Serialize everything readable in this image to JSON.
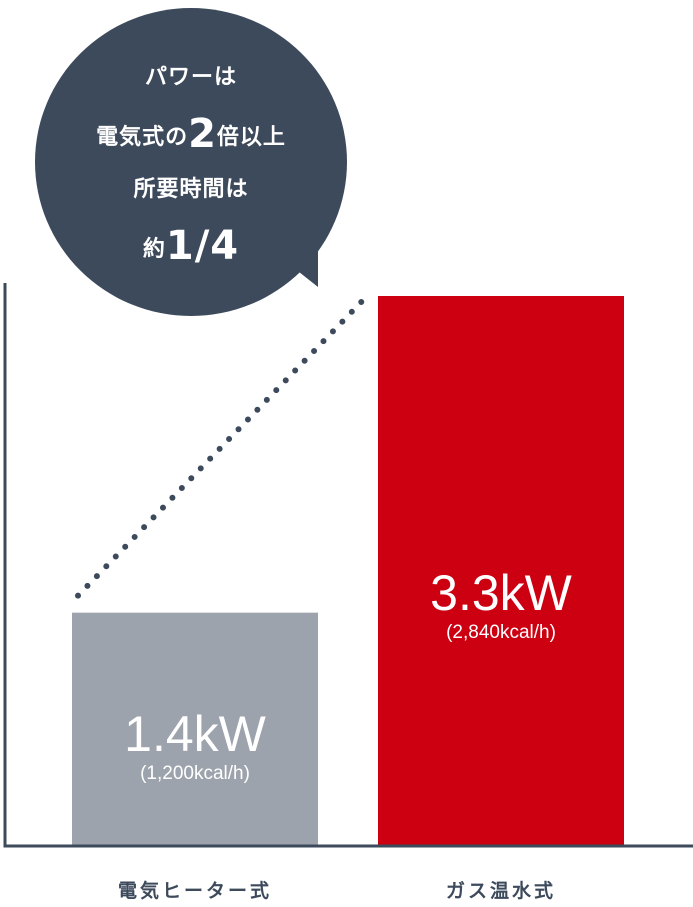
{
  "callout": {
    "line1": "パワーは",
    "line2_pre": "電気式の",
    "line2_big": "2",
    "line2_post": "倍以上",
    "line3": "所要時間は",
    "line4_pre": "約",
    "line4_big": "1/4"
  },
  "chart_data": {
    "type": "bar",
    "categories": [
      "電気ヒーター式",
      "ガス温水式"
    ],
    "values": [
      1.4,
      3.3
    ],
    "unit": "kW",
    "value_labels": [
      "1.4kW",
      "3.3kW"
    ],
    "sub_labels": [
      "(1,200kcal/h)",
      "(2,840kcal/h)"
    ],
    "colors": [
      "#9da3ac",
      "#cc0011"
    ],
    "axis_color": "#3d4a5c",
    "ylim": [
      0,
      3.3
    ],
    "grid": false,
    "legend": "none"
  }
}
